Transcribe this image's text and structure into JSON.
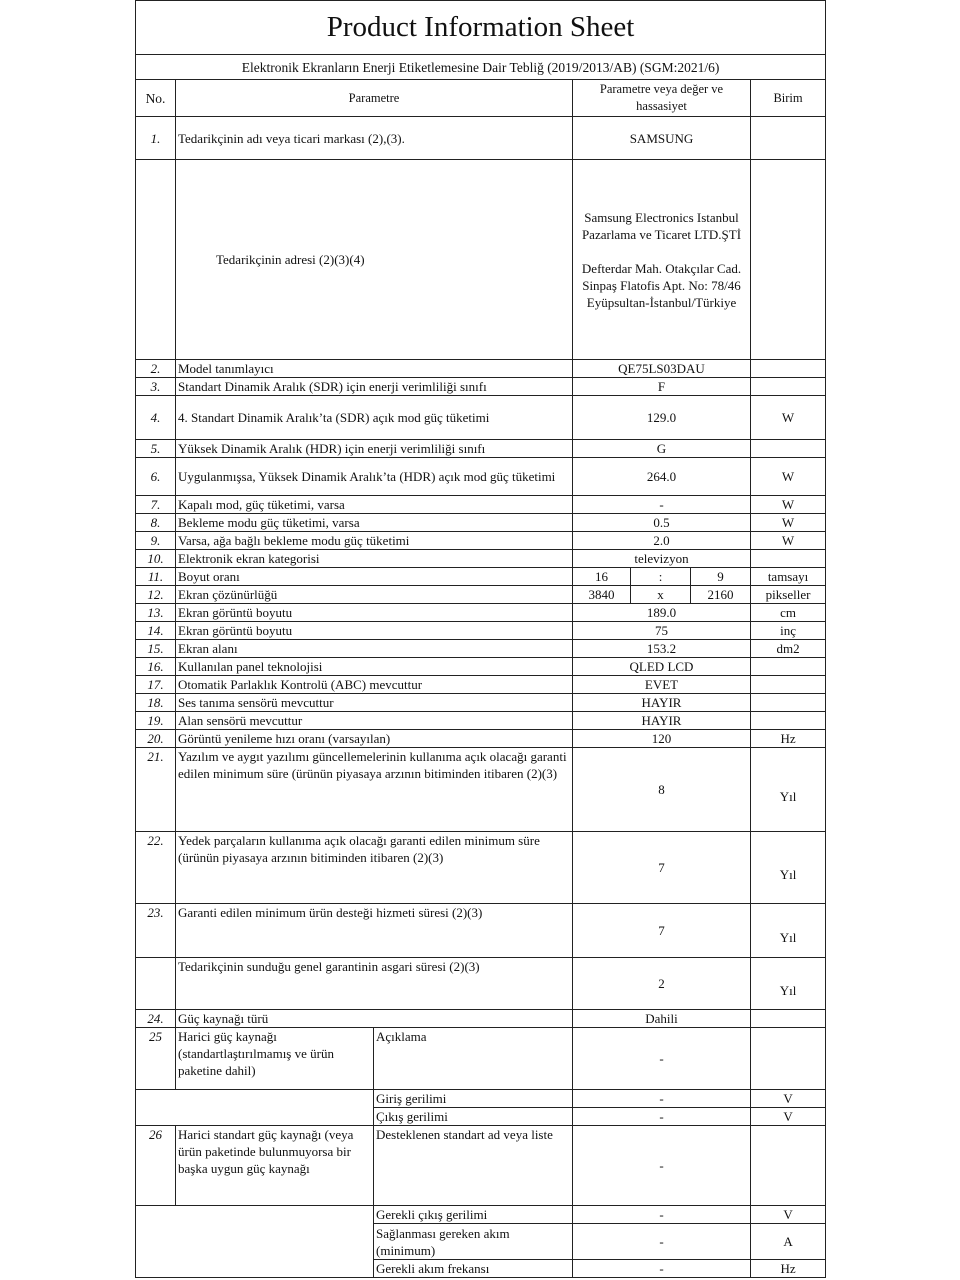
{
  "title": "Product Information Sheet",
  "subtitle": "Elektronik Ekranların Enerji Etiketlemesine Dair Tebliğ (2019/2013/AB) (SGM:2021/6)",
  "header": {
    "no": "No.",
    "param": "Parametre",
    "value": "Parametre veya değer ve hassasiyet",
    "unit": "Birim"
  },
  "rows": [
    {
      "no": "1.",
      "param": "Tedarikçinin adı veya ticari markası (2),(3).",
      "value": "SAMSUNG",
      "unit": ""
    },
    {
      "no": "",
      "param": "Tedarikçinin adresi (2)(3)(4)",
      "value": "Samsung Electronics Istanbul Pazarlama ve Ticaret LTD.ŞTİ\n\nDefterdar Mah. Otakçılar Cad. Sinpaş Flatofis Apt. No: 78/46 Eyüpsultan-İstanbul/Türkiye",
      "unit": ""
    },
    {
      "no": "2.",
      "param": "Model tanımlayıcı",
      "value": "QE75LS03DAU",
      "unit": ""
    },
    {
      "no": "3.",
      "param": "Standart Dinamik Aralık (SDR) için enerji verimliliği sınıfı",
      "value": "F",
      "unit": ""
    },
    {
      "no": "4.",
      "param": "4. Standart Dinamik Aralık’ta (SDR) açık mod güç tüketimi",
      "value": "129.0",
      "unit": "W"
    },
    {
      "no": "5.",
      "param": "Yüksek Dinamik Aralık (HDR) için enerji verimliliği sınıfı",
      "value": "G",
      "unit": ""
    },
    {
      "no": "6.",
      "param": "Uygulanmışsa, Yüksek Dinamik Aralık’ta (HDR) açık mod güç tüketimi",
      "value": "264.0",
      "unit": "W"
    },
    {
      "no": "7.",
      "param": "Kapalı mod, güç tüketimi, varsa",
      "value": "-",
      "unit": "W"
    },
    {
      "no": "8.",
      "param": "Bekleme modu güç tüketimi, varsa",
      "value": "0.5",
      "unit": "W"
    },
    {
      "no": "9.",
      "param": "Varsa, ağa bağlı bekleme modu güç tüketimi",
      "value": "2.0",
      "unit": "W"
    },
    {
      "no": "10.",
      "param": "Elektronik ekran kategorisi",
      "value": "televizyon",
      "unit": ""
    },
    {
      "no": "11.",
      "param": "Boyut oranı",
      "values": [
        "16",
        ":",
        "9"
      ],
      "unit": "tamsayı"
    },
    {
      "no": "12.",
      "param": "Ekran çözünürlüğü",
      "values": [
        "3840",
        "x",
        "2160"
      ],
      "unit": "pikseller"
    },
    {
      "no": "13.",
      "param": "Ekran görüntü boyutu",
      "value": "189.0",
      "unit": "cm"
    },
    {
      "no": "14.",
      "param": "Ekran görüntü boyutu",
      "value": "75",
      "unit": "inç"
    },
    {
      "no": "15.",
      "param": "Ekran alanı",
      "value": "153.2",
      "unit": "dm2"
    },
    {
      "no": "16.",
      "param": "Kullanılan panel teknolojisi",
      "value": "QLED LCD",
      "unit": ""
    },
    {
      "no": "17.",
      "param": "Otomatik Parlaklık Kontrolü (ABC) mevcuttur",
      "value": "EVET",
      "unit": ""
    },
    {
      "no": "18.",
      "param": "Ses tanıma sensörü mevcuttur",
      "value": "HAYIR",
      "unit": ""
    },
    {
      "no": "19.",
      "param": "Alan sensörü mevcuttur",
      "value": "HAYIR",
      "unit": ""
    },
    {
      "no": "20.",
      "param": "Görüntü yenileme hızı oranı (varsayılan)",
      "value": "120",
      "unit": "Hz"
    },
    {
      "no": "21.",
      "param": "Yazılım ve aygıt yazılımı güncellemelerinin kullanıma açık olacağı garanti edilen minimum süre (ürünün piyasaya arzının bitiminden itibaren (2)(3)",
      "value": "8",
      "unit": "Yıl"
    },
    {
      "no": "22.",
      "param": "Yedek parçaların kullanıma açık olacağı garanti edilen minimum süre (ürünün piyasaya arzının bitiminden itibaren (2)(3)",
      "value": "7",
      "unit": "Yıl"
    },
    {
      "no": "23.",
      "param": "Garanti edilen minimum ürün desteği hizmeti süresi (2)(3)",
      "value": "7",
      "unit": "Yıl"
    },
    {
      "no": "",
      "param": "Tedarikçinin sunduğu genel garantinin asgari süresi (2)(3)",
      "value": "2",
      "unit": "Yıl"
    },
    {
      "no": "24.",
      "param": "Güç kaynağı türü",
      "value": "Dahili",
      "unit": ""
    }
  ],
  "psu25": {
    "no": "25",
    "param": "Harici güç kaynağı (standartlaştırılmamış ve ürün paketine dahil)",
    "desc_label": "Açıklama",
    "desc_value": "-",
    "sub": [
      {
        "label": "Giriş gerilimi",
        "value": "-",
        "unit": "V"
      },
      {
        "label": "Çıkış gerilimi",
        "value": "-",
        "unit": "V"
      }
    ]
  },
  "psu26": {
    "no": "26",
    "param": "Harici standart güç kaynağı (veya ürün paketinde bulunmuyorsa bir başka uygun güç kaynağı",
    "desc_label": "Desteklenen standart ad veya liste",
    "desc_value": "-",
    "sub": [
      {
        "label": "Gerekli çıkış gerilimi",
        "value": "-",
        "unit": "V"
      },
      {
        "label": "Sağlanması gereken akım (minimum)",
        "value": "-",
        "unit": "A"
      },
      {
        "label": "Gerekli akım frekansı",
        "value": "-",
        "unit": "Hz"
      }
    ]
  }
}
